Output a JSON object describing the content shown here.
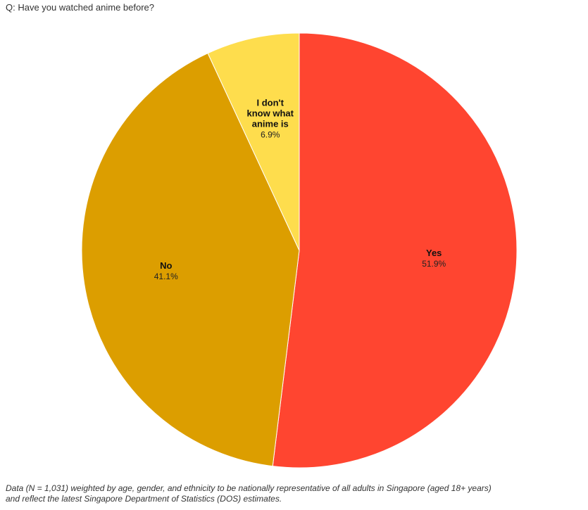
{
  "chart_data": {
    "type": "pie",
    "title": "Q: Have you watched anime before?",
    "slices": [
      {
        "label_lines": [
          "Yes"
        ],
        "value": 51.9,
        "value_label": "51.9%",
        "color": "#ff4530"
      },
      {
        "label_lines": [
          "No"
        ],
        "value": 41.1,
        "value_label": "41.1%",
        "color": "#dc9e00"
      },
      {
        "label_lines": [
          "I don't",
          "know what",
          "anime is"
        ],
        "value": 6.9,
        "value_label": "6.9%",
        "color": "#fedd4d"
      }
    ],
    "start_angle_deg": 0,
    "direction": "clockwise",
    "legend": "none"
  },
  "footnote": {
    "line1": "Data (N = 1,031) weighted by age, gender, and ethnicity to be nationally representative of all adults in Singapore (aged 18+ years)",
    "line2": "and reflect the latest Singapore Department of Statistics (DOS) estimates."
  }
}
